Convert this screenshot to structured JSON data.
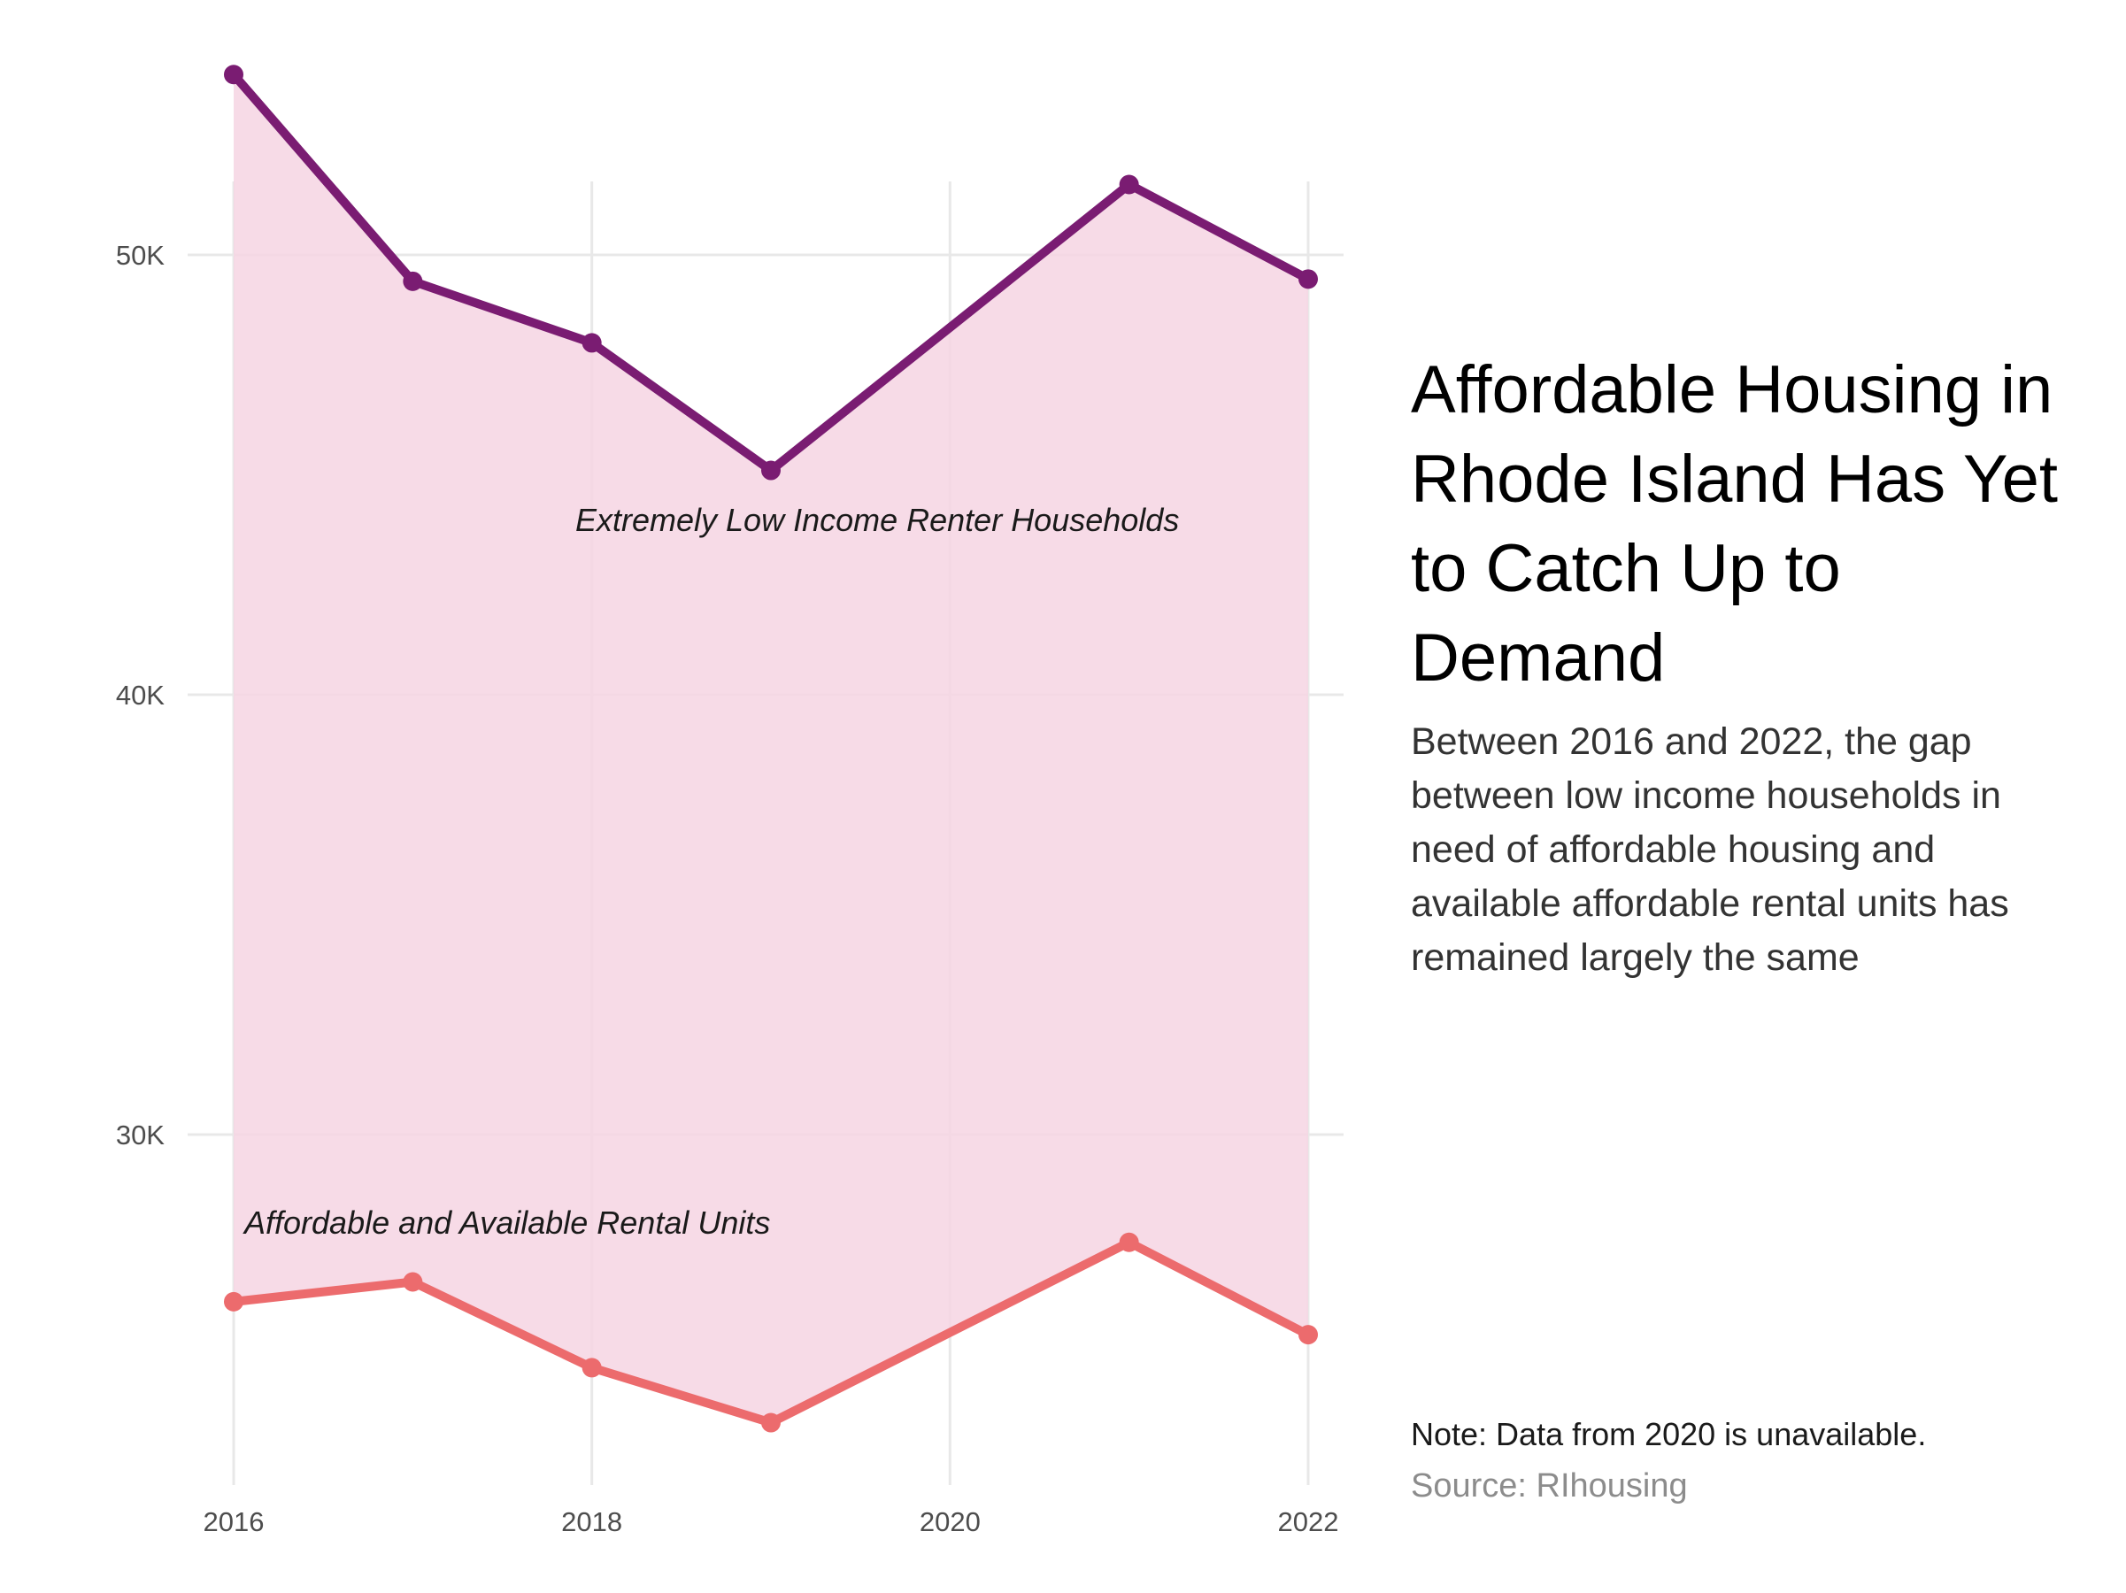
{
  "chart_data": {
    "type": "line",
    "title": "Affordable Housing in Rhode Island Has Yet to Catch Up to Demand",
    "subtitle": "Between 2016 and 2022, the gap between low income households in need of affordable housing and available affordable rental units has remained largely the same",
    "note": "Note: Data from 2020 is unavailable.",
    "source": "Source: RIhousing",
    "xlabel": "",
    "ylabel": "",
    "x_ticks": [
      2016,
      2018,
      2020,
      2022
    ],
    "x_tick_labels": [
      "2016",
      "2018",
      "2020",
      "2022"
    ],
    "y_ticks": [
      30000,
      40000,
      50000
    ],
    "y_tick_labels": [
      "30K",
      "40K",
      "50K"
    ],
    "xlim": [
      2016,
      2022
    ],
    "ylim": [
      23000,
      55000
    ],
    "grid": true,
    "gap_fill_color": "#f6d5e3",
    "series": [
      {
        "name": "Extremely Low Income Renter Households",
        "color": "#7a1c72",
        "points": [
          {
            "x": 2016,
            "y": 54100
          },
          {
            "x": 2017,
            "y": 49400
          },
          {
            "x": 2018,
            "y": 48000
          },
          {
            "x": 2019,
            "y": 45100
          },
          {
            "x": 2021,
            "y": 51600
          },
          {
            "x": 2022,
            "y": 49450
          }
        ]
      },
      {
        "name": "Affordable and Available Rental Units",
        "color": "#ec6b6d",
        "points": [
          {
            "x": 2016,
            "y": 26200
          },
          {
            "x": 2017,
            "y": 26650
          },
          {
            "x": 2018,
            "y": 24700
          },
          {
            "x": 2019,
            "y": 23450
          },
          {
            "x": 2021,
            "y": 27550
          },
          {
            "x": 2022,
            "y": 25450
          }
        ]
      }
    ]
  }
}
